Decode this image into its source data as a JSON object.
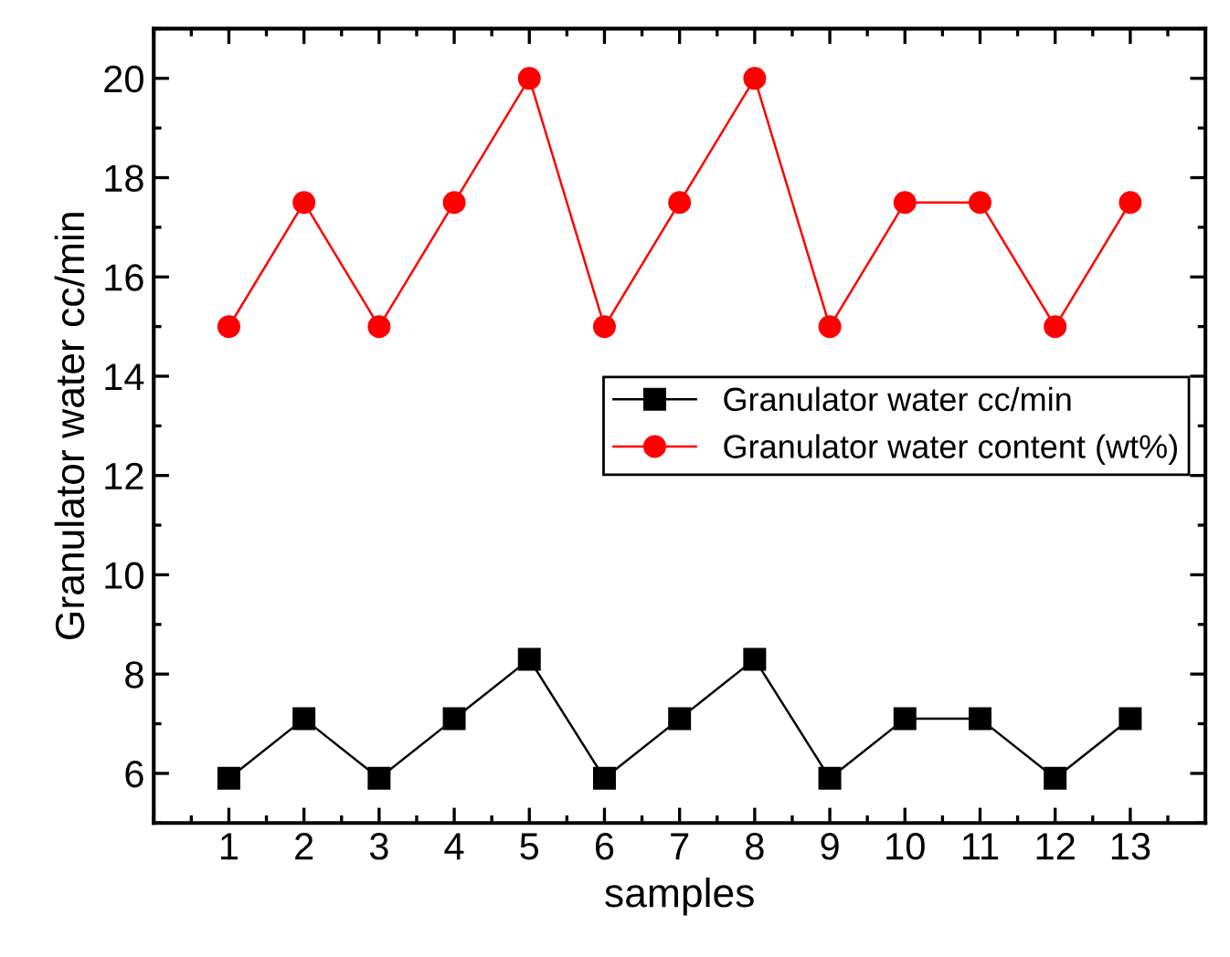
{
  "chart_data": {
    "type": "line",
    "xlabel": "samples",
    "ylabel": "Granulator water cc/min",
    "x": [
      1,
      2,
      3,
      4,
      5,
      6,
      7,
      8,
      9,
      10,
      11,
      12,
      13
    ],
    "series": [
      {
        "name": "Granulator water cc/min",
        "color": "#000000",
        "marker": "square",
        "values": [
          5.9,
          7.1,
          5.9,
          7.1,
          8.3,
          5.9,
          7.1,
          8.3,
          5.9,
          7.1,
          7.1,
          5.9,
          7.1
        ]
      },
      {
        "name": "Granulator water content (wt%)",
        "color": "#ff0000",
        "marker": "circle",
        "values": [
          15,
          17.5,
          15,
          17.5,
          20,
          15,
          17.5,
          20,
          15,
          17.5,
          17.5,
          15,
          17.5
        ]
      }
    ],
    "xlim": [
      0,
      14
    ],
    "xticks": [
      1,
      2,
      3,
      4,
      5,
      6,
      7,
      8,
      9,
      10,
      11,
      12,
      13
    ],
    "ylim": [
      5,
      21
    ],
    "yticks": [
      6,
      8,
      10,
      12,
      14,
      16,
      18,
      20
    ],
    "grid": false,
    "legend": "center right",
    "line_style": "solid"
  }
}
